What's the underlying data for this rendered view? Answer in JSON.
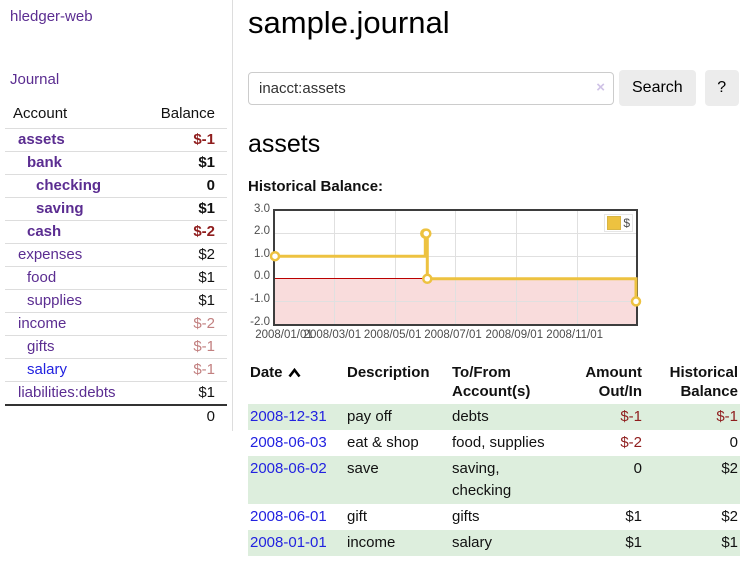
{
  "app": {
    "brand": "hledger-web"
  },
  "sidebar": {
    "nav_journal": "Journal",
    "table": {
      "headers": {
        "account": "Account",
        "balance": "Balance"
      },
      "rows": [
        {
          "account": "assets",
          "depth": 1,
          "bold": true,
          "link": "purple",
          "balance": "$-1",
          "balance_class": "neg-strong"
        },
        {
          "account": "bank",
          "depth": 2,
          "bold": true,
          "link": "purple",
          "balance": "$1",
          "balance_class": ""
        },
        {
          "account": "checking",
          "depth": 3,
          "bold": true,
          "link": "purple",
          "balance": "0",
          "balance_class": ""
        },
        {
          "account": "saving",
          "depth": 3,
          "bold": true,
          "link": "purple",
          "balance": "$1",
          "balance_class": ""
        },
        {
          "account": "cash",
          "depth": 2,
          "bold": true,
          "link": "purple",
          "balance": "$-2",
          "balance_class": "neg-strong"
        },
        {
          "account": "expenses",
          "depth": 1,
          "bold": false,
          "link": "purple",
          "balance": "$2",
          "balance_class": ""
        },
        {
          "account": "food",
          "depth": 2,
          "bold": false,
          "link": "purple",
          "balance": "$1",
          "balance_class": ""
        },
        {
          "account": "supplies",
          "depth": 2,
          "bold": false,
          "link": "purple",
          "balance": "$1",
          "balance_class": ""
        },
        {
          "account": "income",
          "depth": 1,
          "bold": false,
          "link": "purple",
          "balance": "$-2",
          "balance_class": "neg-soft"
        },
        {
          "account": "gifts",
          "depth": 2,
          "bold": false,
          "link": "purple",
          "balance": "$-1",
          "balance_class": "neg-soft"
        },
        {
          "account": "salary",
          "depth": 2,
          "bold": false,
          "link": "blue",
          "balance": "$-1",
          "balance_class": "neg-soft"
        },
        {
          "account": "liabilities:debts",
          "depth": 1,
          "bold": false,
          "link": "purple",
          "balance": "$1",
          "balance_class": ""
        }
      ],
      "total": "0"
    }
  },
  "main": {
    "title": "sample.journal",
    "search": {
      "value": "inacct:assets",
      "clear_icon": "×",
      "button": "Search",
      "help_button": "?"
    },
    "section_title": "assets",
    "chart_label": "Historical Balance:"
  },
  "chart_data": {
    "type": "line",
    "step": true,
    "title": "Historical Balance",
    "series": [
      {
        "name": "$",
        "color": "#edc240",
        "points": [
          {
            "date": "2008-01-01",
            "value": 1
          },
          {
            "date": "2008-06-01",
            "value": 2
          },
          {
            "date": "2008-06-02",
            "value": 2
          },
          {
            "date": "2008-06-03",
            "value": 0
          },
          {
            "date": "2008-12-31",
            "value": -1
          }
        ]
      }
    ],
    "xrange": [
      "2008-01-01",
      "2008-12-31"
    ],
    "ylim": [
      -2.0,
      3.0
    ],
    "yticks": [
      3.0,
      2.0,
      1.0,
      0.0,
      -1.0,
      -2.0
    ],
    "xticks": [
      {
        "label": "2008/01/01",
        "date": "2008-01-01"
      },
      {
        "label": "2008/03/01",
        "date": "2008-03-01"
      },
      {
        "label": "2008/05/01",
        "date": "2008-05-01"
      },
      {
        "label": "2008/07/01",
        "date": "2008-07-01"
      },
      {
        "label": "2008/09/01",
        "date": "2008-09-01"
      },
      {
        "label": "2008/11/01",
        "date": "2008-11-01"
      }
    ],
    "legend": {
      "label": "$",
      "position": "top-right"
    },
    "grid": true,
    "negative_region_color": "#f9dcdc",
    "zero_line_color": "#bb0000"
  },
  "register_table": {
    "headers": [
      "Date",
      "Description",
      "To/From Account(s)",
      "Amount Out/In",
      "Historical Balance"
    ],
    "rows": [
      {
        "date": "2008-12-31",
        "description": "pay off",
        "accounts": "debts",
        "amount": "$-1",
        "amount_class": "neg",
        "balance": "$-1",
        "balance_class": "neg"
      },
      {
        "date": "2008-06-03",
        "description": "eat & shop",
        "accounts": "food, supplies",
        "amount": "$-2",
        "amount_class": "neg",
        "balance": "0",
        "balance_class": ""
      },
      {
        "date": "2008-06-02",
        "description": "save",
        "accounts": "saving, checking",
        "amount": "0",
        "amount_class": "",
        "balance": "$2",
        "balance_class": ""
      },
      {
        "date": "2008-06-01",
        "description": "gift",
        "accounts": "gifts",
        "amount": "$1",
        "amount_class": "",
        "balance": "$2",
        "balance_class": ""
      },
      {
        "date": "2008-01-01",
        "description": "income",
        "accounts": "salary",
        "amount": "$1",
        "amount_class": "",
        "balance": "$1",
        "balance_class": ""
      }
    ]
  },
  "colors": {
    "purple_link": "#5b2d91",
    "blue_link": "#2222e0",
    "negative_strong": "#8f1d1d",
    "negative_soft": "#c28080",
    "row_green": "#ddeedd",
    "chart_line": "#edc240",
    "chart_negative_region": "#f9dcdc",
    "chart_zero_line": "#bb0000"
  }
}
